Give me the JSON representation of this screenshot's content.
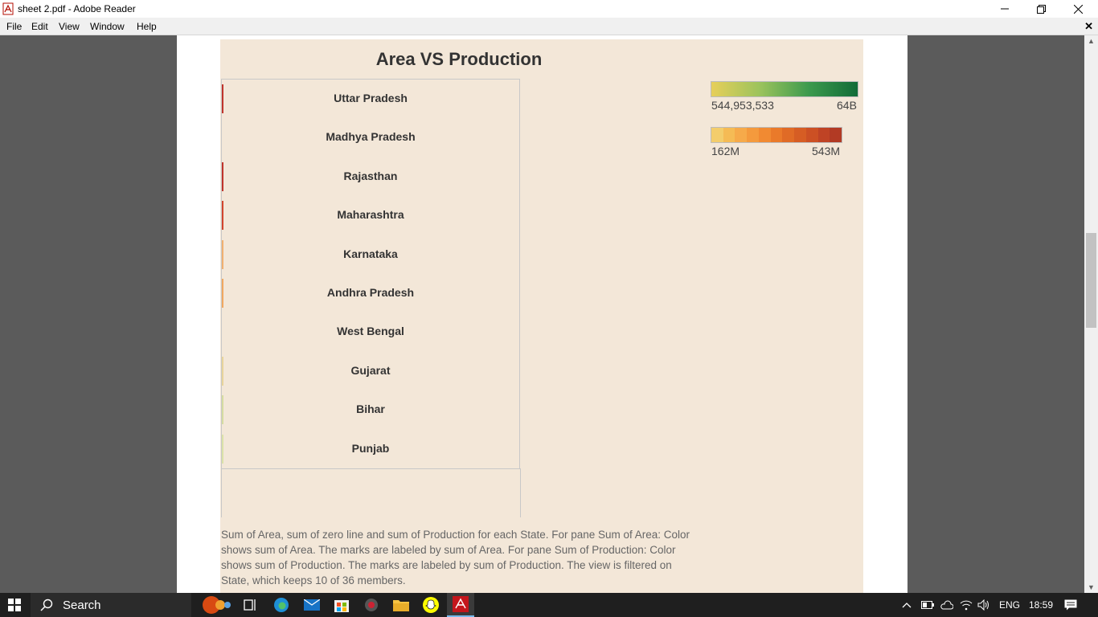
{
  "window": {
    "title": "sheet 2.pdf - Adobe Reader"
  },
  "menu": {
    "items": [
      "File",
      "Edit",
      "View",
      "Window",
      "Help"
    ]
  },
  "sheet": {
    "title": "Area VS Production",
    "rows": [
      {
        "state": "Uttar Pradesh",
        "color": "#c0352b"
      },
      {
        "state": "Madhya Pradesh",
        "color": "#f3e7d8"
      },
      {
        "state": "Rajasthan",
        "color": "#c0352b"
      },
      {
        "state": "Maharashtra",
        "color": "#d2452d"
      },
      {
        "state": "Karnataka",
        "color": "#f0b070"
      },
      {
        "state": "Andhra Pradesh",
        "color": "#f0a860"
      },
      {
        "state": "West Bengal",
        "color": "#f3e7d8"
      },
      {
        "state": "Gujarat",
        "color": "#e8d49a"
      },
      {
        "state": "Bihar",
        "color": "#d6dca0"
      },
      {
        "state": "Punjab",
        "color": "#dbe2a8"
      }
    ],
    "legend_area": {
      "min": "544,953,533",
      "max": "64B"
    },
    "legend_production": {
      "min": "162M",
      "max": "543M",
      "steps": [
        "#f3cd6c",
        "#f5bb55",
        "#f6aa4a",
        "#f49a3d",
        "#f18a32",
        "#ea7a2a",
        "#e06b26",
        "#d65d24",
        "#cc5024",
        "#bf4325",
        "#b23a24"
      ]
    },
    "caption": "Sum of Area, sum of zero line and sum of Production for each State.  For pane Sum of Area:  Color shows sum of Area.  The marks are labeled by sum of Area.  For pane Sum of Production:  Color shows sum of Production.  The marks are labeled by sum of Production.  The view is filtered on State, which keeps 10 of 36 members."
  },
  "taskbar": {
    "search_placeholder": "Search",
    "lang": "ENG",
    "time": "18:59"
  }
}
